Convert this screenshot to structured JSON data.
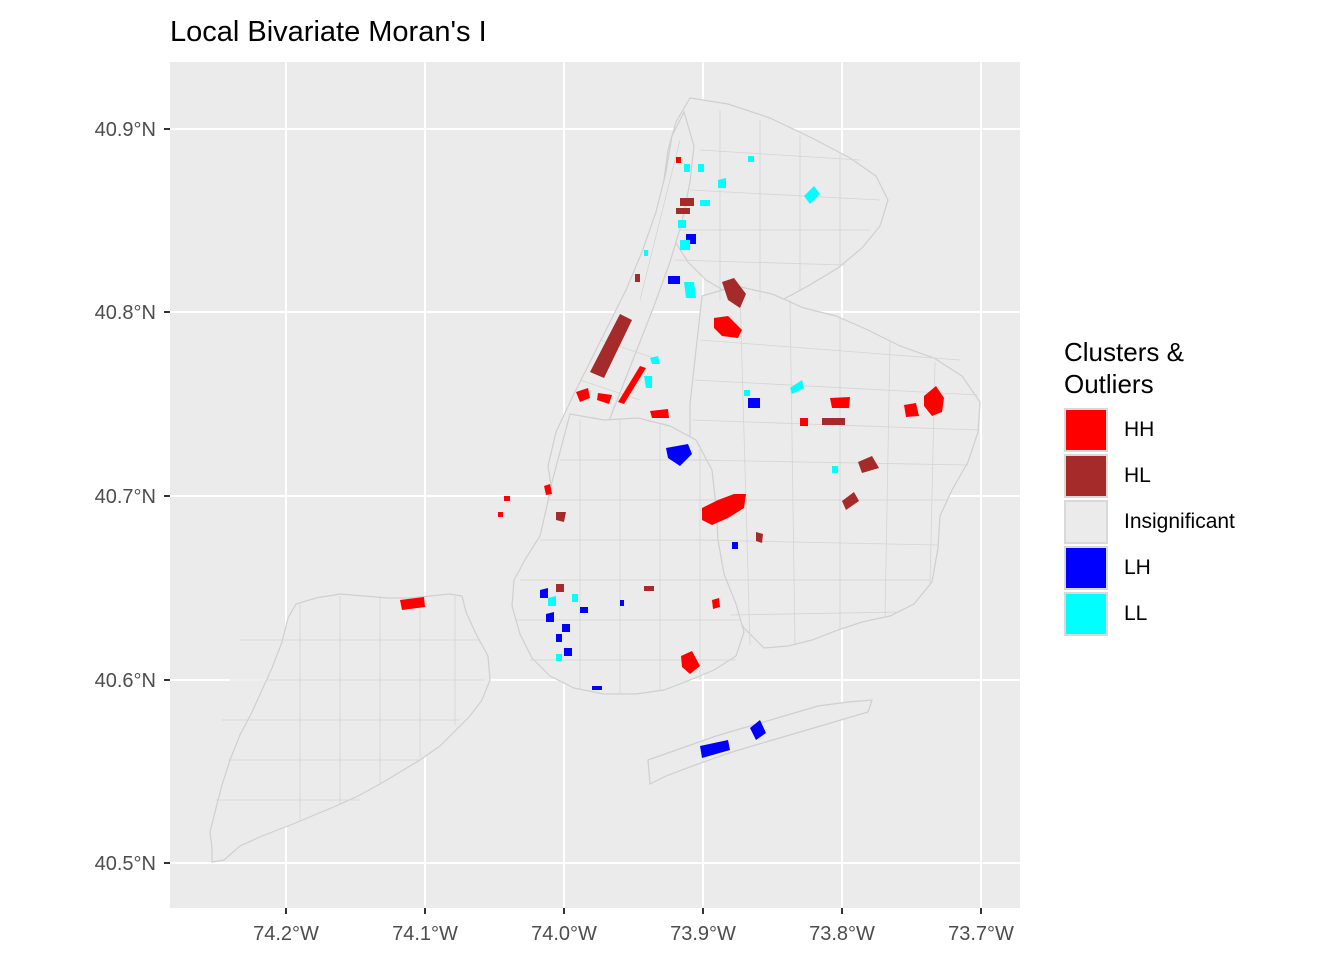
{
  "title": "Local Bivariate Moran's I",
  "legend": {
    "title_line1": "Clusters &",
    "title_line2": "Outliers",
    "items": [
      {
        "label": "HH",
        "color": "#ff0000"
      },
      {
        "label": "HL",
        "color": "#a52a2a"
      },
      {
        "label": "Insignificant",
        "color": "#ebebeb"
      },
      {
        "label": "LH",
        "color": "#0000ff"
      },
      {
        "label": "LL",
        "color": "#00ffff"
      }
    ]
  },
  "axes": {
    "x_ticks": [
      "74.2°W",
      "74.1°W",
      "74.0°W",
      "73.9°W",
      "73.8°W",
      "73.7°W"
    ],
    "y_ticks": [
      "40.9°N",
      "40.8°N",
      "40.7°N",
      "40.6°N",
      "40.5°N"
    ]
  },
  "colors": {
    "panel": "#ebebeb",
    "grid": "#ffffff",
    "land": "#ebebeb",
    "boundary": "#cfcfcf"
  }
}
